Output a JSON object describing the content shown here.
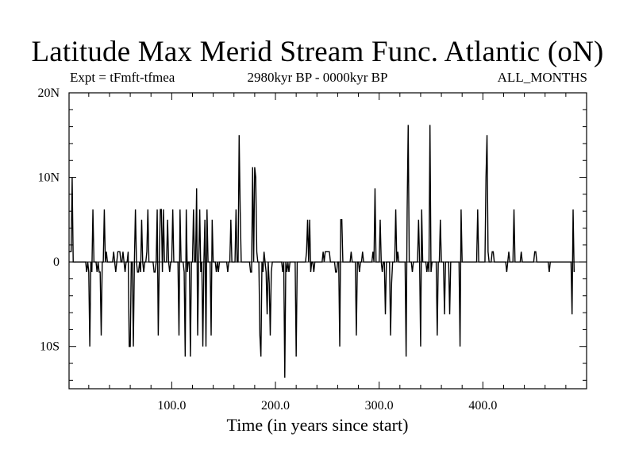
{
  "header": {
    "title": "Latitude Max Merid Stream Func. Atlantic (oN)",
    "expt": "Expt = tFmft-tfmea",
    "period": "2980kyr BP - 0000kyr BP",
    "months": "ALL_MONTHS"
  },
  "chart_data": {
    "type": "line",
    "title": "Latitude Max Merid Stream Func. Atlantic (oN)",
    "xlabel": "Time (in years since start)",
    "ylabel": "",
    "xlim": [
      1,
      500
    ],
    "ylim": [
      -15,
      20
    ],
    "x_ticks": [
      {
        "value": 100,
        "label": "100.0"
      },
      {
        "value": 200,
        "label": "200.0"
      },
      {
        "value": 300,
        "label": "300.0"
      },
      {
        "value": 400,
        "label": "400.0"
      }
    ],
    "y_ticks": [
      {
        "value": 20,
        "label": "20N"
      },
      {
        "value": 10,
        "label": "10N"
      },
      {
        "value": 0,
        "label": "0"
      },
      {
        "value": -10,
        "label": "10S"
      }
    ],
    "grid": false,
    "series": [
      {
        "name": "",
        "color": "#000000",
        "x_start": 1,
        "x_step": 1,
        "values": [
          1.2,
          1.2,
          1.2,
          10,
          0,
          0,
          0,
          0,
          0,
          0,
          0,
          0,
          0,
          0,
          0,
          0,
          0,
          -1.2,
          0,
          -1.2,
          -10,
          0,
          -1.2,
          6.2,
          0,
          0,
          0,
          -1.2,
          0,
          -1.2,
          -1.2,
          -8.7,
          0,
          0,
          6.2,
          0,
          1.2,
          0,
          0,
          0,
          0,
          0,
          0,
          1.2,
          0,
          -1.2,
          0,
          1.2,
          1.2,
          1.2,
          0,
          0,
          1.2,
          0,
          -1.2,
          0,
          0,
          1.2,
          -10,
          -10,
          0,
          0,
          -10,
          0,
          6.2,
          0,
          -1.2,
          -1.2,
          0,
          -1.2,
          5,
          0,
          -1.2,
          0,
          0,
          1.2,
          6.2,
          0,
          0,
          0,
          0,
          0,
          -1.2,
          -1.2,
          0,
          6.2,
          -8.7,
          0,
          6.2,
          6.2,
          -1.2,
          6.2,
          0,
          0,
          0,
          5,
          0,
          -1.2,
          0,
          0,
          6.2,
          0,
          0,
          0,
          0,
          0,
          -8.7,
          6.2,
          0,
          0,
          0,
          -1.2,
          -11.2,
          6.2,
          -1.2,
          0,
          0,
          -11.2,
          0,
          0,
          6.2,
          0,
          0,
          8.7,
          -8.7,
          0,
          6.2,
          -1.2,
          0,
          -10,
          0,
          5,
          -10,
          6.2,
          0,
          0,
          0,
          -8.7,
          5,
          0,
          0,
          0,
          -1.2,
          0,
          -1.2,
          0,
          0,
          0,
          0,
          0,
          0,
          0,
          0,
          -1.2,
          0,
          0,
          5,
          0,
          0,
          0,
          0,
          6.2,
          0,
          0,
          15,
          6.2,
          0,
          0,
          0,
          0,
          0,
          0,
          0,
          0,
          0,
          -1.2,
          -1.2,
          11.2,
          0,
          11.2,
          10,
          1.2,
          0,
          0,
          -8.7,
          -11.2,
          0,
          -1.2,
          1.2,
          0,
          -1.2,
          -6.2,
          0,
          -2.5,
          -8.7,
          -1.2,
          0,
          0,
          0,
          0,
          0,
          0,
          0,
          0,
          0,
          0,
          -1.2,
          0,
          -13.7,
          0,
          -1.2,
          0,
          -1.2,
          0,
          0,
          0,
          0,
          0,
          0,
          -11.2,
          0,
          0,
          0,
          0,
          0,
          0,
          0,
          0,
          0,
          1.2,
          5,
          0,
          5,
          -1.2,
          0,
          0,
          -1.2,
          0,
          0,
          0,
          0,
          0,
          0,
          0,
          0,
          1.2,
          0,
          1.2,
          1.2,
          1.2,
          1.2,
          1.2,
          0,
          0,
          0,
          0,
          0,
          -1.2,
          -1.2,
          0,
          0,
          -10,
          5,
          5,
          0,
          0,
          0,
          0,
          0,
          0,
          0,
          0,
          1.2,
          0,
          0,
          0,
          0,
          -8.7,
          0,
          0,
          -1.2,
          0,
          0,
          1.2,
          0,
          0,
          0,
          0,
          0,
          0,
          0,
          0,
          0,
          1.2,
          0,
          8.7,
          0,
          0,
          0,
          0,
          5,
          0,
          -1.2,
          0,
          0,
          -6.2,
          0,
          0,
          0,
          0,
          -8.7,
          -2.5,
          0,
          0,
          0,
          6.2,
          0,
          1.2,
          0,
          0,
          0,
          0,
          0,
          0,
          0,
          -11.2,
          6.2,
          16.2,
          0,
          0,
          0,
          -1.2,
          0,
          0,
          0,
          0,
          0,
          5,
          0,
          -10,
          6.2,
          0,
          0,
          0,
          0,
          -1.2,
          0,
          -1.2,
          16.2,
          -1.2,
          0,
          0,
          0,
          0,
          0,
          -8.7,
          0,
          0,
          5,
          0,
          0,
          0,
          -6.2,
          0,
          0,
          0,
          0,
          -6.2,
          0,
          0,
          0,
          0,
          0,
          0,
          0,
          0,
          0,
          -10,
          6.2,
          0,
          0,
          0,
          0,
          0,
          0,
          0,
          0,
          0,
          0,
          0,
          0,
          0,
          0,
          0,
          6.2,
          0,
          0,
          0,
          0,
          0,
          0,
          0,
          10,
          15,
          1.2,
          0,
          0,
          0,
          1.2,
          1.2,
          0,
          0,
          0,
          0,
          0,
          0,
          0,
          0,
          0,
          0,
          0,
          0,
          -1.2,
          0,
          1.2,
          0,
          0,
          0,
          0,
          6.2,
          0,
          0,
          0,
          0,
          0,
          0,
          1.2,
          0,
          0,
          0,
          0,
          0,
          0,
          0,
          0,
          0,
          0,
          0,
          0,
          1.2,
          1.2,
          0,
          0,
          0,
          0,
          0,
          0,
          0,
          0,
          0,
          0,
          0,
          0,
          -1.2,
          0,
          0,
          0,
          0,
          0,
          0,
          0,
          0,
          0,
          0,
          0,
          0,
          0,
          0,
          0,
          0,
          0,
          0,
          0,
          0,
          0,
          -6.2,
          6.2,
          -1.2
        ]
      }
    ]
  }
}
